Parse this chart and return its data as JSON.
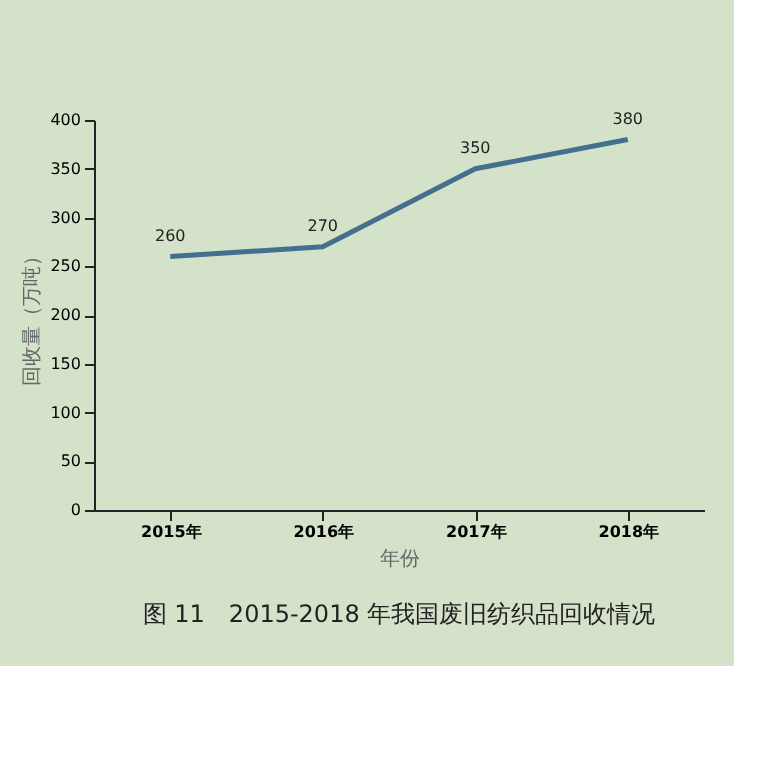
{
  "chart_data": {
    "type": "line",
    "title": "图 11　2015-2018 年我国废旧纺织品回收情况",
    "xlabel": "年份",
    "ylabel": "回收量（万吨）",
    "categories": [
      "2015年",
      "2016年",
      "2017年",
      "2018年"
    ],
    "series": [
      {
        "color": "#41718f",
        "values": [
          260,
          270,
          350,
          380
        ]
      }
    ],
    "ylim": [
      0,
      400
    ],
    "yticks": [
      0,
      50,
      100,
      150,
      200,
      250,
      300,
      350,
      400
    ],
    "grid": false,
    "legend": false,
    "data_labels": true,
    "marker": "none",
    "line_style": "solid"
  }
}
